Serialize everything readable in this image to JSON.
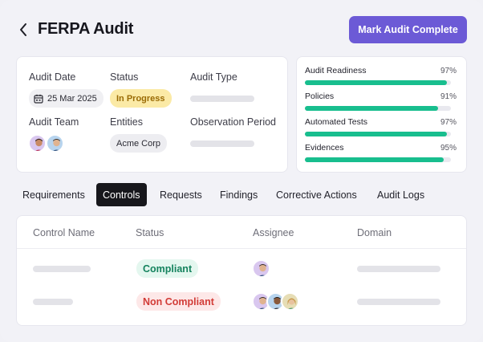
{
  "header": {
    "title": "FERPA Audit",
    "primary_action": "Mark Audit Complete"
  },
  "info": {
    "audit_date_label": "Audit Date",
    "audit_date_value": "25 Mar 2025",
    "status_label": "Status",
    "status_value": "In Progress",
    "audit_type_label": "Audit Type",
    "audit_team_label": "Audit Team",
    "entities_label": "Entities",
    "entities_value": "Acme Corp",
    "observation_label": "Observation Period"
  },
  "readiness": [
    {
      "label": "Audit Readiness",
      "percent_text": "97%",
      "value": 0.97
    },
    {
      "label": "Policies",
      "percent_text": "91%",
      "value": 0.91
    },
    {
      "label": "Automated Tests",
      "percent_text": "97%",
      "value": 0.97
    },
    {
      "label": "Evidences",
      "percent_text": "95%",
      "value": 0.95
    }
  ],
  "tabs": [
    {
      "label": "Requirements"
    },
    {
      "label": "Controls",
      "active": true
    },
    {
      "label": "Requests"
    },
    {
      "label": "Findings"
    },
    {
      "label": "Corrective Actions"
    },
    {
      "label": "Audit Logs"
    }
  ],
  "table": {
    "columns": [
      "Control Name",
      "Status",
      "Assignee",
      "Domain"
    ],
    "rows": [
      {
        "status": "Compliant",
        "status_kind": "good"
      },
      {
        "status": "Non Compliant",
        "status_kind": "bad"
      }
    ]
  },
  "colors": {
    "accent": "#6c5ad6",
    "progress": "#18be8e",
    "status_in_progress_bg": "#fbeaa6",
    "compliant": "#15835e",
    "non_compliant": "#d23c37"
  }
}
